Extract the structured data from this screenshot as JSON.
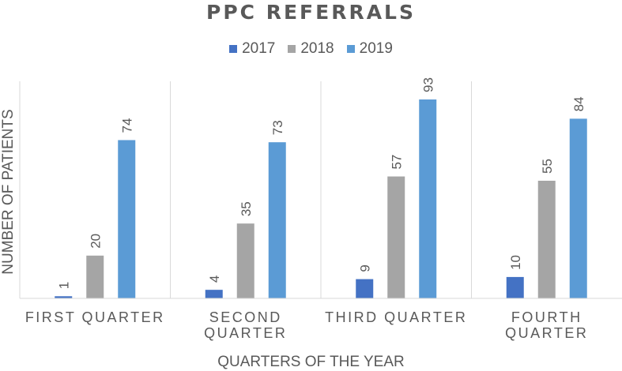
{
  "chart_data": {
    "type": "bar",
    "title": "PPC REFERRALS",
    "xlabel": "QUARTERS OF THE YEAR",
    "ylabel": "NUMBER OF PATIENTS",
    "categories": [
      [
        "FIRST QUARTER"
      ],
      [
        "SECOND",
        "QUARTER"
      ],
      [
        "THIRD QUARTER"
      ],
      [
        "FOURTH",
        "QUARTER"
      ]
    ],
    "series": [
      {
        "name": "2017",
        "values": [
          1,
          4,
          9,
          10
        ],
        "color": "#4472C4"
      },
      {
        "name": "2018",
        "values": [
          20,
          35,
          57,
          55
        ],
        "color": "#A5A5A5"
      },
      {
        "name": "2019",
        "values": [
          74,
          73,
          93,
          84
        ],
        "color": "#5B9BD5"
      }
    ],
    "ylim": [
      0,
      93
    ],
    "legend_position": "top",
    "gridlines": "vertical category separators",
    "data_labels": true,
    "data_label_orientation": "vertical"
  }
}
